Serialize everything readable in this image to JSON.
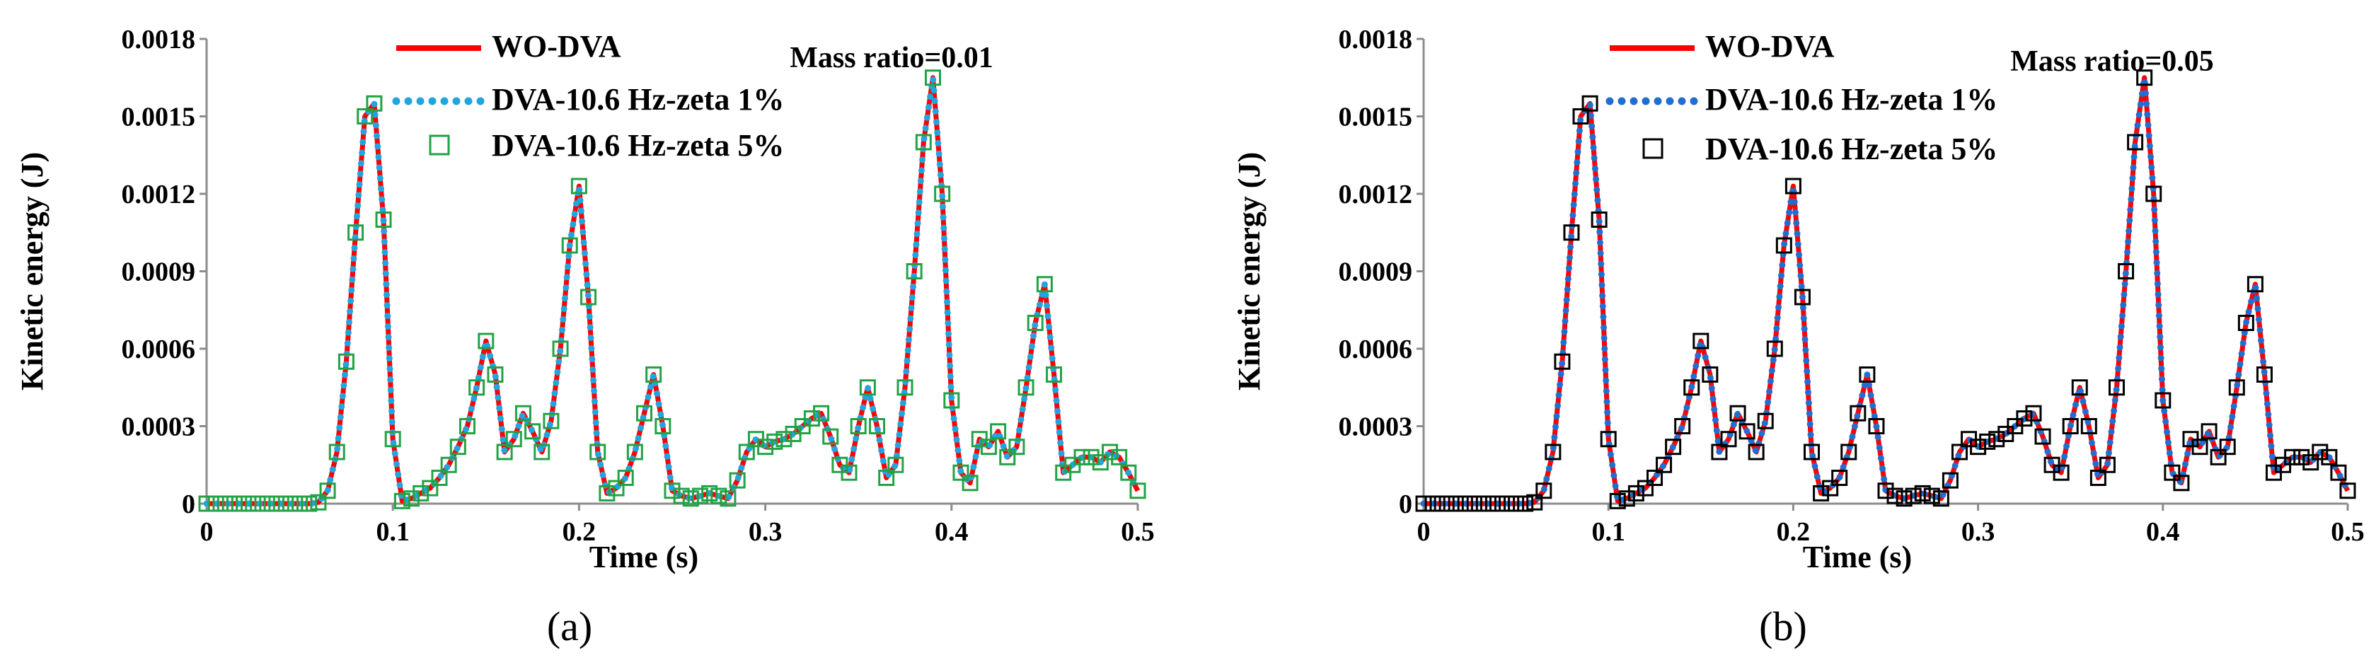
{
  "chart_data": [
    {
      "type": "line",
      "panel_label": "(a)",
      "annotation": "Mass ratio=0.01",
      "xlabel": "Time  (s)",
      "ylabel": "Kinetic energy (J)",
      "xlim": [
        0,
        0.5
      ],
      "ylim": [
        0,
        0.0018
      ],
      "x_ticks": [
        "0",
        "0.1",
        "0.2",
        "0.3",
        "0.4",
        "0.5"
      ],
      "y_ticks": [
        "0",
        "0.0003",
        "0.0006",
        "0.0009",
        "0.0012",
        "0.0015",
        "0.0018"
      ],
      "grid": false,
      "legend_position": "top-center",
      "marker_color": "#22a246",
      "x": [
        0,
        0.005,
        0.01,
        0.015,
        0.02,
        0.025,
        0.03,
        0.035,
        0.04,
        0.045,
        0.05,
        0.055,
        0.06,
        0.065,
        0.07,
        0.075,
        0.08,
        0.085,
        0.09,
        0.095,
        0.1,
        0.105,
        0.11,
        0.115,
        0.12,
        0.125,
        0.13,
        0.135,
        0.14,
        0.145,
        0.15,
        0.155,
        0.16,
        0.165,
        0.17,
        0.175,
        0.18,
        0.185,
        0.19,
        0.195,
        0.2,
        0.205,
        0.21,
        0.215,
        0.22,
        0.225,
        0.23,
        0.235,
        0.24,
        0.245,
        0.25,
        0.255,
        0.26,
        0.265,
        0.27,
        0.275,
        0.28,
        0.285,
        0.29,
        0.295,
        0.3,
        0.305,
        0.31,
        0.315,
        0.32,
        0.325,
        0.33,
        0.335,
        0.34,
        0.345,
        0.35,
        0.355,
        0.36,
        0.365,
        0.37,
        0.375,
        0.38,
        0.385,
        0.39,
        0.395,
        0.4,
        0.405,
        0.41,
        0.415,
        0.42,
        0.425,
        0.43,
        0.435,
        0.44,
        0.445,
        0.45,
        0.455,
        0.46,
        0.465,
        0.47,
        0.475,
        0.48,
        0.485,
        0.49,
        0.495,
        0.5
      ],
      "series": [
        {
          "name": "WO-DVA",
          "style": "solid",
          "color": "#ff0000",
          "values": [
            0,
            0,
            0,
            0,
            0,
            0,
            0,
            0,
            0,
            0,
            0,
            0,
            5e-06,
            5e-05,
            0.0002,
            0.00055,
            0.00105,
            0.0015,
            0.00155,
            0.0011,
            0.00025,
            1e-05,
            2e-05,
            4e-05,
            6e-05,
            0.0001,
            0.00015,
            0.00022,
            0.0003,
            0.00045,
            0.00063,
            0.0005,
            0.0002,
            0.00025,
            0.00035,
            0.00028,
            0.0002,
            0.00032,
            0.0006,
            0.001,
            0.00123,
            0.0008,
            0.0002,
            4e-05,
            6e-05,
            0.0001,
            0.0002,
            0.00035,
            0.0005,
            0.0003,
            5e-05,
            3e-05,
            2e-05,
            3e-05,
            4e-05,
            3e-05,
            2e-05,
            9e-05,
            0.0002,
            0.00025,
            0.00022,
            0.00024,
            0.00025,
            0.00027,
            0.0003,
            0.00033,
            0.00035,
            0.00026,
            0.00015,
            0.00012,
            0.0003,
            0.00045,
            0.0003,
            0.0001,
            0.00015,
            0.00045,
            0.0009,
            0.0014,
            0.00165,
            0.0012,
            0.0004,
            0.00012,
            8e-05,
            0.00025,
            0.00022,
            0.00028,
            0.00018,
            0.00022,
            0.00045,
            0.0007,
            0.00085,
            0.0005,
            0.00012,
            0.00015,
            0.00018,
            0.00018,
            0.00016,
            0.0002,
            0.00018,
            0.00012,
            5e-05
          ]
        },
        {
          "name": "DVA-10.6 Hz-zeta 1%",
          "style": "dotted",
          "color": "#1fa6e0",
          "values": [
            0,
            0,
            0,
            0,
            0,
            0,
            0,
            0,
            0,
            0,
            0,
            0,
            5e-06,
            5e-05,
            0.0002,
            0.00055,
            0.00105,
            0.0015,
            0.00155,
            0.0011,
            0.00025,
            1e-05,
            2e-05,
            4e-05,
            6e-05,
            0.0001,
            0.00015,
            0.00022,
            0.0003,
            0.00045,
            0.00063,
            0.0005,
            0.0002,
            0.00025,
            0.00035,
            0.00028,
            0.0002,
            0.00032,
            0.0006,
            0.001,
            0.00123,
            0.0008,
            0.0002,
            4e-05,
            6e-05,
            0.0001,
            0.0002,
            0.00035,
            0.0005,
            0.0003,
            5e-05,
            3e-05,
            2e-05,
            3e-05,
            4e-05,
            3e-05,
            2e-05,
            9e-05,
            0.0002,
            0.00025,
            0.00022,
            0.00024,
            0.00025,
            0.00027,
            0.0003,
            0.00033,
            0.00035,
            0.00026,
            0.00015,
            0.00012,
            0.0003,
            0.00045,
            0.0003,
            0.0001,
            0.00015,
            0.00045,
            0.0009,
            0.0014,
            0.00165,
            0.0012,
            0.0004,
            0.00012,
            8e-05,
            0.00025,
            0.00022,
            0.00028,
            0.00018,
            0.00022,
            0.00045,
            0.0007,
            0.00085,
            0.0005,
            0.00012,
            0.00015,
            0.00018,
            0.00018,
            0.00016,
            0.0002,
            0.00018,
            0.00012,
            5e-05
          ]
        },
        {
          "name": "DVA-10.6 Hz-zeta 5%",
          "style": "square-markers",
          "color": "#22a246",
          "values": [
            0,
            0,
            0,
            0,
            0,
            0,
            0,
            0,
            0,
            0,
            0,
            0,
            5e-06,
            5e-05,
            0.0002,
            0.00055,
            0.00105,
            0.0015,
            0.00155,
            0.0011,
            0.00025,
            1e-05,
            2e-05,
            4e-05,
            6e-05,
            0.0001,
            0.00015,
            0.00022,
            0.0003,
            0.00045,
            0.00063,
            0.0005,
            0.0002,
            0.00025,
            0.00035,
            0.00028,
            0.0002,
            0.00032,
            0.0006,
            0.001,
            0.00123,
            0.0008,
            0.0002,
            4e-05,
            6e-05,
            0.0001,
            0.0002,
            0.00035,
            0.0005,
            0.0003,
            5e-05,
            3e-05,
            2e-05,
            3e-05,
            4e-05,
            3e-05,
            2e-05,
            9e-05,
            0.0002,
            0.00025,
            0.00022,
            0.00024,
            0.00025,
            0.00027,
            0.0003,
            0.00033,
            0.00035,
            0.00026,
            0.00015,
            0.00012,
            0.0003,
            0.00045,
            0.0003,
            0.0001,
            0.00015,
            0.00045,
            0.0009,
            0.0014,
            0.00165,
            0.0012,
            0.0004,
            0.00012,
            8e-05,
            0.00025,
            0.00022,
            0.00028,
            0.00018,
            0.00022,
            0.00045,
            0.0007,
            0.00085,
            0.0005,
            0.00012,
            0.00015,
            0.00018,
            0.00018,
            0.00016,
            0.0002,
            0.00018,
            0.00012,
            5e-05
          ]
        }
      ]
    },
    {
      "type": "line",
      "panel_label": "(b)",
      "annotation": "Mass ratio=0.05",
      "xlabel": "Time  (s)",
      "ylabel": "Kinetic energy (J)",
      "xlim": [
        0,
        0.5
      ],
      "ylim": [
        0,
        0.0018
      ],
      "x_ticks": [
        "0",
        "0.1",
        "0.2",
        "0.3",
        "0.4",
        "0.5"
      ],
      "y_ticks": [
        "0",
        "0.0003",
        "0.0006",
        "0.0009",
        "0.0012",
        "0.0015",
        "0.0018"
      ],
      "grid": false,
      "legend_position": "top-center",
      "marker_color": "#000000",
      "x": [
        0,
        0.005,
        0.01,
        0.015,
        0.02,
        0.025,
        0.03,
        0.035,
        0.04,
        0.045,
        0.05,
        0.055,
        0.06,
        0.065,
        0.07,
        0.075,
        0.08,
        0.085,
        0.09,
        0.095,
        0.1,
        0.105,
        0.11,
        0.115,
        0.12,
        0.125,
        0.13,
        0.135,
        0.14,
        0.145,
        0.15,
        0.155,
        0.16,
        0.165,
        0.17,
        0.175,
        0.18,
        0.185,
        0.19,
        0.195,
        0.2,
        0.205,
        0.21,
        0.215,
        0.22,
        0.225,
        0.23,
        0.235,
        0.24,
        0.245,
        0.25,
        0.255,
        0.26,
        0.265,
        0.27,
        0.275,
        0.28,
        0.285,
        0.29,
        0.295,
        0.3,
        0.305,
        0.31,
        0.315,
        0.32,
        0.325,
        0.33,
        0.335,
        0.34,
        0.345,
        0.35,
        0.355,
        0.36,
        0.365,
        0.37,
        0.375,
        0.38,
        0.385,
        0.39,
        0.395,
        0.4,
        0.405,
        0.41,
        0.415,
        0.42,
        0.425,
        0.43,
        0.435,
        0.44,
        0.445,
        0.45,
        0.455,
        0.46,
        0.465,
        0.47,
        0.475,
        0.48,
        0.485,
        0.49,
        0.495,
        0.5
      ],
      "series": [
        {
          "name": "WO-DVA",
          "style": "solid",
          "color": "#ff0000",
          "values": [
            0,
            0,
            0,
            0,
            0,
            0,
            0,
            0,
            0,
            0,
            0,
            0,
            5e-06,
            5e-05,
            0.0002,
            0.00055,
            0.00105,
            0.0015,
            0.00155,
            0.0011,
            0.00025,
            1e-05,
            2e-05,
            4e-05,
            6e-05,
            0.0001,
            0.00015,
            0.00022,
            0.0003,
            0.00045,
            0.00063,
            0.0005,
            0.0002,
            0.00025,
            0.00035,
            0.00028,
            0.0002,
            0.00032,
            0.0006,
            0.001,
            0.00123,
            0.0008,
            0.0002,
            4e-05,
            6e-05,
            0.0001,
            0.0002,
            0.00035,
            0.0005,
            0.0003,
            5e-05,
            3e-05,
            2e-05,
            3e-05,
            4e-05,
            3e-05,
            2e-05,
            9e-05,
            0.0002,
            0.00025,
            0.00022,
            0.00024,
            0.00025,
            0.00027,
            0.0003,
            0.00033,
            0.00035,
            0.00026,
            0.00015,
            0.00012,
            0.0003,
            0.00045,
            0.0003,
            0.0001,
            0.00015,
            0.00045,
            0.0009,
            0.0014,
            0.00165,
            0.0012,
            0.0004,
            0.00012,
            8e-05,
            0.00025,
            0.00022,
            0.00028,
            0.00018,
            0.00022,
            0.00045,
            0.0007,
            0.00085,
            0.0005,
            0.00012,
            0.00015,
            0.00018,
            0.00018,
            0.00016,
            0.0002,
            0.00018,
            0.00012,
            5e-05
          ]
        },
        {
          "name": "DVA-10.6 Hz-zeta 1%",
          "style": "dotted",
          "color": "#1f6fd1",
          "values": [
            0,
            0,
            0,
            0,
            0,
            0,
            0,
            0,
            0,
            0,
            0,
            0,
            5e-06,
            5e-05,
            0.0002,
            0.00055,
            0.00105,
            0.0015,
            0.00155,
            0.0011,
            0.00025,
            1e-05,
            2e-05,
            4e-05,
            6e-05,
            0.0001,
            0.00015,
            0.00022,
            0.0003,
            0.00045,
            0.00063,
            0.0005,
            0.0002,
            0.00025,
            0.00035,
            0.00028,
            0.0002,
            0.00032,
            0.0006,
            0.001,
            0.00123,
            0.0008,
            0.0002,
            4e-05,
            6e-05,
            0.0001,
            0.0002,
            0.00035,
            0.0005,
            0.0003,
            5e-05,
            3e-05,
            2e-05,
            3e-05,
            4e-05,
            3e-05,
            2e-05,
            9e-05,
            0.0002,
            0.00025,
            0.00022,
            0.00024,
            0.00025,
            0.00027,
            0.0003,
            0.00033,
            0.00035,
            0.00026,
            0.00015,
            0.00012,
            0.0003,
            0.00045,
            0.0003,
            0.0001,
            0.00015,
            0.00045,
            0.0009,
            0.0014,
            0.00165,
            0.0012,
            0.0004,
            0.00012,
            8e-05,
            0.00025,
            0.00022,
            0.00028,
            0.00018,
            0.00022,
            0.00045,
            0.0007,
            0.00085,
            0.0005,
            0.00012,
            0.00015,
            0.00018,
            0.00018,
            0.00016,
            0.0002,
            0.00018,
            0.00012,
            5e-05
          ]
        },
        {
          "name": "DVA-10.6 Hz-zeta 5%",
          "style": "square-markers",
          "color": "#000000",
          "values": [
            0,
            0,
            0,
            0,
            0,
            0,
            0,
            0,
            0,
            0,
            0,
            0,
            5e-06,
            5e-05,
            0.0002,
            0.00055,
            0.00105,
            0.0015,
            0.00155,
            0.0011,
            0.00025,
            1e-05,
            2e-05,
            4e-05,
            6e-05,
            0.0001,
            0.00015,
            0.00022,
            0.0003,
            0.00045,
            0.00063,
            0.0005,
            0.0002,
            0.00025,
            0.00035,
            0.00028,
            0.0002,
            0.00032,
            0.0006,
            0.001,
            0.00123,
            0.0008,
            0.0002,
            4e-05,
            6e-05,
            0.0001,
            0.0002,
            0.00035,
            0.0005,
            0.0003,
            5e-05,
            3e-05,
            2e-05,
            3e-05,
            4e-05,
            3e-05,
            2e-05,
            9e-05,
            0.0002,
            0.00025,
            0.00022,
            0.00024,
            0.00025,
            0.00027,
            0.0003,
            0.00033,
            0.00035,
            0.00026,
            0.00015,
            0.00012,
            0.0003,
            0.00045,
            0.0003,
            0.0001,
            0.00015,
            0.00045,
            0.0009,
            0.0014,
            0.00165,
            0.0012,
            0.0004,
            0.00012,
            8e-05,
            0.00025,
            0.00022,
            0.00028,
            0.00018,
            0.00022,
            0.00045,
            0.0007,
            0.00085,
            0.0005,
            0.00012,
            0.00015,
            0.00018,
            0.00018,
            0.00016,
            0.0002,
            0.00018,
            0.00012,
            5e-05
          ]
        }
      ]
    }
  ]
}
